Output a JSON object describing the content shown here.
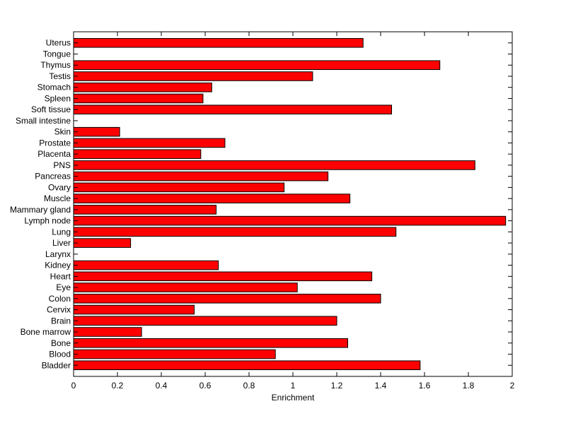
{
  "chart_data": {
    "type": "bar",
    "orientation": "horizontal",
    "xlabel": "Enrichment",
    "ylabel": "",
    "title": "",
    "xlim": [
      0,
      2
    ],
    "xticks": [
      0,
      0.2,
      0.4,
      0.6,
      0.8,
      1,
      1.2,
      1.4,
      1.6,
      1.8,
      2
    ],
    "xtick_labels": [
      "0",
      "0.2",
      "0.4",
      "0.6",
      "0.8",
      "1",
      "1.2",
      "1.4",
      "1.6",
      "1.8",
      "2"
    ],
    "grid": false,
    "bar_color": "#ff0000",
    "edge_color": "#000000",
    "categories": [
      "Bladder",
      "Blood",
      "Bone",
      "Bone marrow",
      "Brain",
      "Cervix",
      "Colon",
      "Eye",
      "Heart",
      "Kidney",
      "Larynx",
      "Liver",
      "Lung",
      "Lymph node",
      "Mammary gland",
      "Muscle",
      "Ovary",
      "Pancreas",
      "PNS",
      "Placenta",
      "Prostate",
      "Skin",
      "Small intestine",
      "Soft tissue",
      "Spleen",
      "Stomach",
      "Testis",
      "Thymus",
      "Tongue",
      "Uterus"
    ],
    "values": [
      1.58,
      0.92,
      1.25,
      0.31,
      1.2,
      0.55,
      1.4,
      1.02,
      1.36,
      0.66,
      0,
      0.26,
      1.47,
      1.97,
      0.65,
      1.26,
      0.96,
      1.16,
      1.83,
      0.58,
      0.69,
      0.21,
      0,
      1.45,
      0.59,
      0.63,
      1.09,
      1.67,
      0,
      1.32
    ]
  }
}
